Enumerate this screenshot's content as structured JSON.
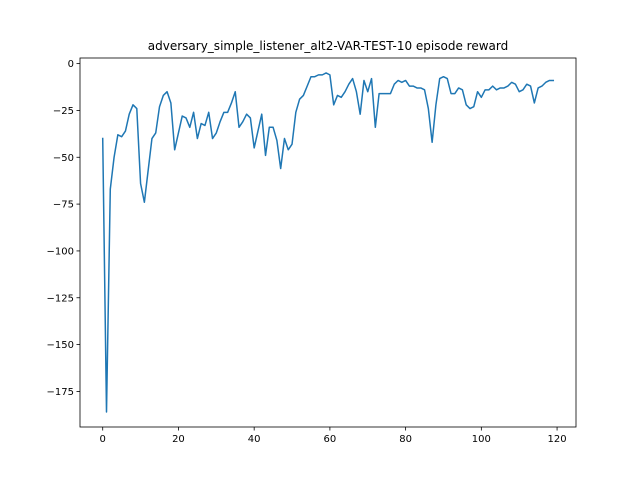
{
  "chart_data": {
    "type": "line",
    "title": "adversary_simple_listener_alt2-VAR-TEST-10 episode reward",
    "xlabel": "",
    "ylabel": "",
    "xlim": [
      -6,
      125
    ],
    "ylim": [
      -194,
      3
    ],
    "x_ticks": [
      0,
      20,
      40,
      60,
      80,
      100,
      120
    ],
    "y_ticks": [
      0,
      -25,
      -50,
      -75,
      -100,
      -125,
      -150,
      -175
    ],
    "x_tick_labels": [
      "0",
      "20",
      "40",
      "60",
      "80",
      "100",
      "120"
    ],
    "y_tick_labels": [
      "0",
      "−25",
      "−50",
      "−75",
      "−100",
      "−125",
      "−150",
      "−175"
    ],
    "grid": false,
    "legend": "none",
    "series": [
      {
        "color": "#1f77b4",
        "x": [
          0,
          1,
          2,
          3,
          4,
          5,
          6,
          7,
          8,
          9,
          10,
          11,
          12,
          13,
          14,
          15,
          16,
          17,
          18,
          19,
          20,
          21,
          22,
          23,
          24,
          25,
          26,
          27,
          28,
          29,
          30,
          31,
          32,
          33,
          34,
          35,
          36,
          37,
          38,
          39,
          40,
          41,
          42,
          43,
          44,
          45,
          46,
          47,
          48,
          49,
          50,
          51,
          52,
          53,
          54,
          55,
          56,
          57,
          58,
          59,
          60,
          61,
          62,
          63,
          64,
          65,
          66,
          67,
          68,
          69,
          70,
          71,
          72,
          73,
          74,
          75,
          76,
          77,
          78,
          79,
          80,
          81,
          82,
          83,
          84,
          85,
          86,
          87,
          88,
          89,
          90,
          91,
          92,
          93,
          94,
          95,
          96,
          97,
          98,
          99,
          100,
          101,
          102,
          103,
          104,
          105,
          106,
          107,
          108,
          109,
          110,
          111,
          112,
          113,
          114,
          115,
          116,
          117,
          118,
          119
        ],
        "y": [
          -40,
          -186,
          -67,
          -50,
          -38,
          -39,
          -36,
          -27,
          -22,
          -24,
          -64,
          -74,
          -57,
          -40,
          -37,
          -23,
          -17,
          -15,
          -21,
          -46,
          -37,
          -28,
          -29,
          -34,
          -26,
          -40,
          -32,
          -33,
          -26,
          -40,
          -37,
          -31,
          -26,
          -26,
          -21,
          -15,
          -34,
          -31,
          -27,
          -29,
          -45,
          -36,
          -27,
          -49,
          -34,
          -34,
          -41,
          -56,
          -40,
          -46,
          -43,
          -26,
          -19,
          -17,
          -12,
          -7,
          -7,
          -6,
          -6,
          -5,
          -6,
          -22,
          -17,
          -18,
          -15,
          -11,
          -8,
          -15,
          -27,
          -9,
          -15,
          -8,
          -34,
          -16,
          -16,
          -16,
          -16,
          -11,
          -9,
          -10,
          -9,
          -12,
          -12,
          -13,
          -13,
          -14,
          -24,
          -42,
          -22,
          -8,
          -7,
          -8,
          -16,
          -16,
          -13,
          -14,
          -22,
          -24,
          -23,
          -15,
          -18,
          -14,
          -14,
          -12,
          -14,
          -13,
          -13,
          -12,
          -10,
          -11,
          -15,
          -14,
          -11,
          -12,
          -21,
          -13,
          -12,
          -10,
          -9,
          -9
        ]
      }
    ]
  }
}
